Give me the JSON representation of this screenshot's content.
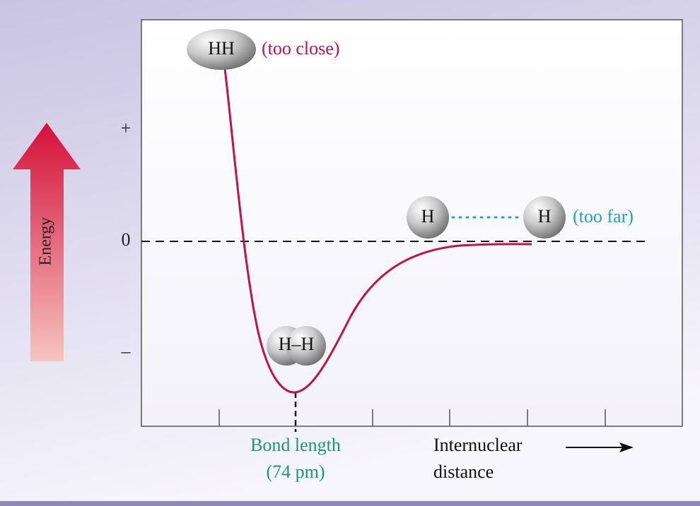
{
  "molecules": {
    "too_close": {
      "label": "HH",
      "note": "(too close)"
    },
    "bonded": {
      "label": "H–H"
    },
    "too_far": {
      "atoms": [
        "H",
        "H"
      ],
      "note": "(too far)"
    }
  },
  "y_axis": {
    "title": "Energy",
    "labels": [
      "+",
      "0",
      "–"
    ]
  },
  "x_axis": {
    "bond_length": [
      "Bond length",
      "(74 pm)"
    ],
    "title": [
      "Internuclear",
      "distance"
    ]
  }
}
